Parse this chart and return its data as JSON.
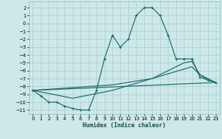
{
  "xlabel": "Humidex (Indice chaleur)",
  "bg_color": "#cce8e8",
  "grid_color": "#aacccc",
  "line_color": "#1a6b6b",
  "xlim": [
    -0.5,
    23.5
  ],
  "ylim": [
    -11.5,
    2.8
  ],
  "xticks": [
    0,
    1,
    2,
    3,
    4,
    5,
    6,
    7,
    8,
    9,
    10,
    11,
    12,
    13,
    14,
    15,
    16,
    17,
    18,
    19,
    20,
    21,
    22,
    23
  ],
  "yticks": [
    2,
    1,
    0,
    -1,
    -2,
    -3,
    -4,
    -5,
    -6,
    -7,
    -8,
    -9,
    -10,
    -11
  ],
  "line1_x": [
    0,
    1,
    2,
    3,
    4,
    5,
    6,
    7,
    8,
    9,
    10,
    11,
    12,
    13,
    14,
    15,
    16,
    17,
    18,
    19,
    20,
    21,
    22,
    23
  ],
  "line1_y": [
    -8.5,
    -9.2,
    -10.0,
    -10.0,
    -10.5,
    -10.8,
    -11.0,
    -11.0,
    -8.5,
    -4.5,
    -1.5,
    -3.0,
    -2.0,
    1.0,
    2.0,
    2.0,
    1.0,
    -1.5,
    -4.5,
    -4.5,
    -4.5,
    -6.8,
    -7.2,
    -7.5
  ],
  "line2_x": [
    0,
    23
  ],
  "line2_y": [
    -8.5,
    -7.5
  ],
  "line3_x": [
    0,
    10,
    15,
    19,
    20,
    21,
    22,
    23
  ],
  "line3_y": [
    -8.5,
    -7.8,
    -7.0,
    -5.8,
    -5.5,
    -6.5,
    -7.0,
    -7.5
  ],
  "line4_x": [
    0,
    5,
    10,
    15,
    19,
    20,
    21,
    22,
    23
  ],
  "line4_y": [
    -8.5,
    -9.5,
    -8.5,
    -7.0,
    -5.0,
    -4.8,
    -6.5,
    -7.2,
    -7.5
  ]
}
